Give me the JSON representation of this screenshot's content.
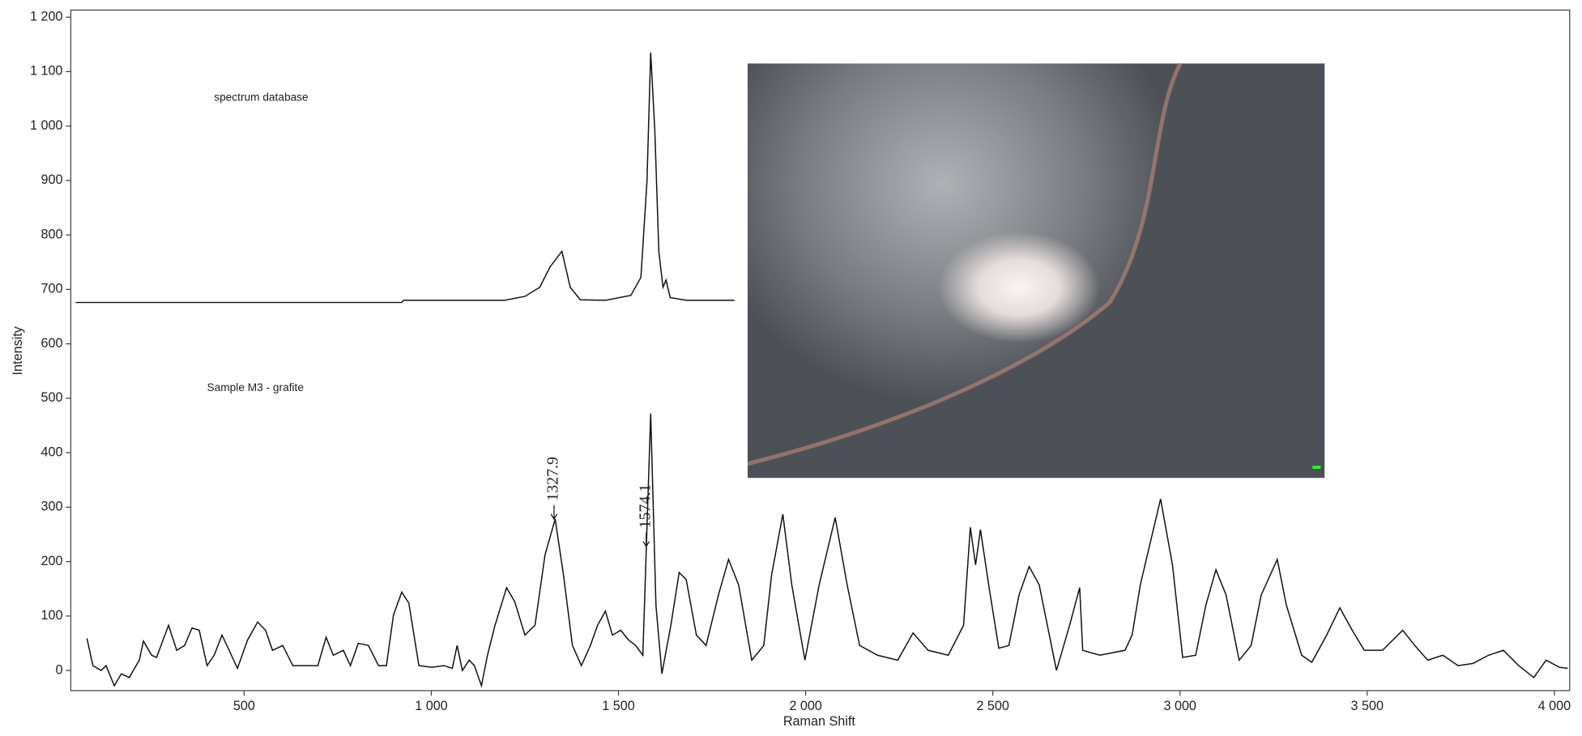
{
  "chart_data": {
    "type": "line",
    "xlabel": "Raman Shift",
    "ylabel": "Intensity",
    "xlim": [
      37,
      4041
    ],
    "ylim": [
      -37,
      1213
    ],
    "xticks": [
      500,
      {
        "value": 1000,
        "label": "1 000"
      },
      {
        "value": 1500,
        "label": "1 500"
      },
      {
        "value": 2000,
        "label": "2 000"
      },
      {
        "value": 2500,
        "label": "2 500"
      },
      {
        "value": 3000,
        "label": "3 000"
      },
      {
        "value": 3500,
        "label": "3 500"
      },
      {
        "value": 4000,
        "label": "4 000"
      }
    ],
    "yticks": [
      0,
      100,
      200,
      300,
      400,
      500,
      600,
      700,
      800,
      900,
      {
        "value": 1000,
        "label": "1 000"
      },
      {
        "value": 1100,
        "label": "1 100"
      },
      {
        "value": 1200,
        "label": "1 200"
      }
    ],
    "series": [
      {
        "name": "spectrum database",
        "color": "#111111",
        "x": [
          50,
          921,
          926,
          1196,
          1250,
          1290,
          1317,
          1349,
          1371,
          1398,
          1465,
          1533,
          1560,
          1576,
          1586,
          1597,
          1608,
          1619,
          1627,
          1638,
          1681,
          1810
        ],
        "values": [
          676,
          676,
          680,
          680,
          687,
          704,
          741,
          770,
          704,
          681,
          680,
          689,
          722,
          898,
          1135,
          991,
          769,
          704,
          717,
          685,
          680,
          680
        ]
      },
      {
        "name": "Sample M3 - grafite",
        "color": "#111111",
        "x": [
          80,
          96,
          118,
          131,
          153,
          172,
          193,
          220,
          231,
          253,
          266,
          298,
          320,
          341,
          361,
          380,
          401,
          420,
          441,
          460,
          482,
          509,
          536,
          557,
          576,
          603,
          630,
          665,
          697,
          719,
          738,
          765,
          784,
          805,
          832,
          859,
          880,
          899,
          921,
          940,
          967,
          1002,
          1034,
          1056,
          1069,
          1083,
          1101,
          1115,
          1134,
          1150,
          1169,
          1201,
          1223,
          1250,
          1277,
          1304,
          1331,
          1353,
          1377,
          1401,
          1425,
          1444,
          1465,
          1484,
          1506,
          1527,
          1546,
          1565,
          1586,
          1600,
          1616,
          1640,
          1662,
          1681,
          1708,
          1734,
          1767,
          1794,
          1821,
          1856,
          1888,
          1909,
          1939,
          1963,
          1998,
          2036,
          2079,
          2111,
          2144,
          2192,
          2246,
          2287,
          2327,
          2381,
          2422,
          2440,
          2454,
          2467,
          2489,
          2516,
          2543,
          2570,
          2597,
          2624,
          2670,
          2705,
          2732,
          2740,
          2786,
          2853,
          2872,
          2894,
          2948,
          2980,
          3007,
          3042,
          3069,
          3096,
          3123,
          3158,
          3190,
          3217,
          3260,
          3284,
          3325,
          3352,
          3392,
          3427,
          3460,
          3492,
          3541,
          3595,
          3627,
          3662,
          3702,
          3743,
          3783,
          3824,
          3864,
          3905,
          3945,
          3978,
          4013,
          4036
        ],
        "values": [
          59,
          9,
          0,
          9,
          -28,
          -6,
          -13,
          19,
          54,
          28,
          24,
          83,
          37,
          46,
          78,
          74,
          9,
          28,
          65,
          37,
          4,
          56,
          89,
          74,
          37,
          46,
          9,
          9,
          9,
          61,
          28,
          37,
          9,
          50,
          46,
          9,
          9,
          102,
          144,
          124,
          9,
          6,
          9,
          4,
          46,
          0,
          19,
          9,
          -28,
          28,
          80,
          152,
          126,
          65,
          83,
          213,
          278,
          176,
          46,
          9,
          46,
          83,
          109,
          65,
          74,
          56,
          46,
          28,
          472,
          120,
          -6,
          83,
          180,
          167,
          65,
          46,
          139,
          204,
          157,
          19,
          46,
          176,
          287,
          157,
          19,
          157,
          281,
          157,
          46,
          28,
          19,
          69,
          37,
          28,
          83,
          263,
          194,
          259,
          157,
          41,
          46,
          139,
          191,
          157,
          0,
          83,
          152,
          37,
          28,
          37,
          65,
          157,
          315,
          194,
          24,
          28,
          120,
          185,
          139,
          19,
          46,
          139,
          204,
          120,
          28,
          15,
          65,
          115,
          74,
          37,
          37,
          74,
          46,
          19,
          28,
          9,
          13,
          28,
          37,
          9,
          -13,
          19,
          6,
          4
        ]
      }
    ],
    "annotations": [
      {
        "text": "1327.9"
      },
      {
        "text": "1574.1"
      }
    ]
  }
}
